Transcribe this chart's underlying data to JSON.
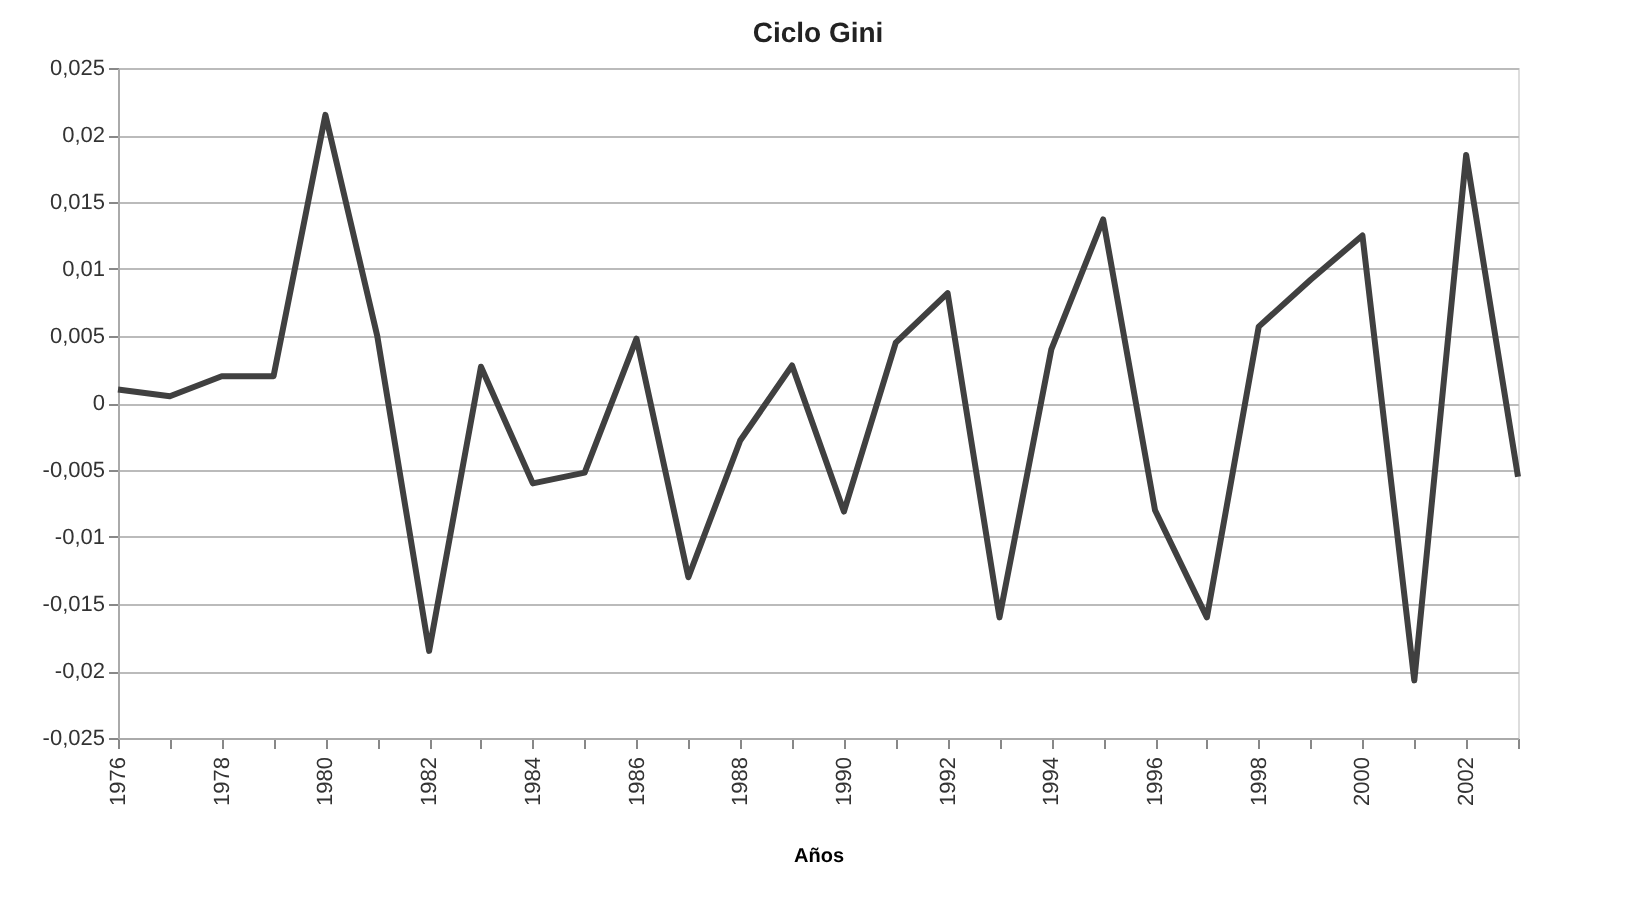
{
  "chart_data": {
    "type": "line",
    "title": "Ciclo Gini",
    "xlabel": "Años",
    "categories": [
      "1976",
      null,
      "1978",
      null,
      "1980",
      null,
      "1982",
      null,
      "1984",
      null,
      "1986",
      null,
      "1988",
      null,
      "1990",
      null,
      "1992",
      null,
      "1994",
      null,
      "1996",
      null,
      "1998",
      null,
      "2000",
      null,
      "2002",
      null
    ],
    "series": [
      {
        "color": "#404040",
        "values": [
          0.001,
          0.0005,
          0.002,
          0.002,
          0.0215,
          0.005,
          -0.0185,
          0.0027,
          -0.006,
          -0.0052,
          0.0048,
          -0.013,
          -0.0028,
          0.0028,
          -0.0081,
          0.0045,
          0.0082,
          -0.016,
          0.004,
          0.0137,
          -0.008,
          -0.016,
          0.0057,
          0.0092,
          0.0125,
          -0.0207,
          0.0185,
          -0.0055
        ]
      }
    ],
    "ylim": [
      -0.025,
      0.025
    ],
    "yticks": [
      {
        "value": -0.025,
        "label": "-0,025"
      },
      {
        "value": -0.02,
        "label": "-0,02"
      },
      {
        "value": -0.015,
        "label": "-0,015"
      },
      {
        "value": -0.01,
        "label": "-0,01"
      },
      {
        "value": -0.005,
        "label": "-0,005"
      },
      {
        "value": 0,
        "label": "0"
      },
      {
        "value": 0.005,
        "label": "0,005"
      },
      {
        "value": 0.01,
        "label": "0,01"
      },
      {
        "value": 0.015,
        "label": "0,015"
      },
      {
        "value": 0.02,
        "label": "0,02"
      },
      {
        "value": 0.025,
        "label": "0,025"
      }
    ],
    "grid": "y",
    "marker": "none",
    "line_style": "solid"
  }
}
